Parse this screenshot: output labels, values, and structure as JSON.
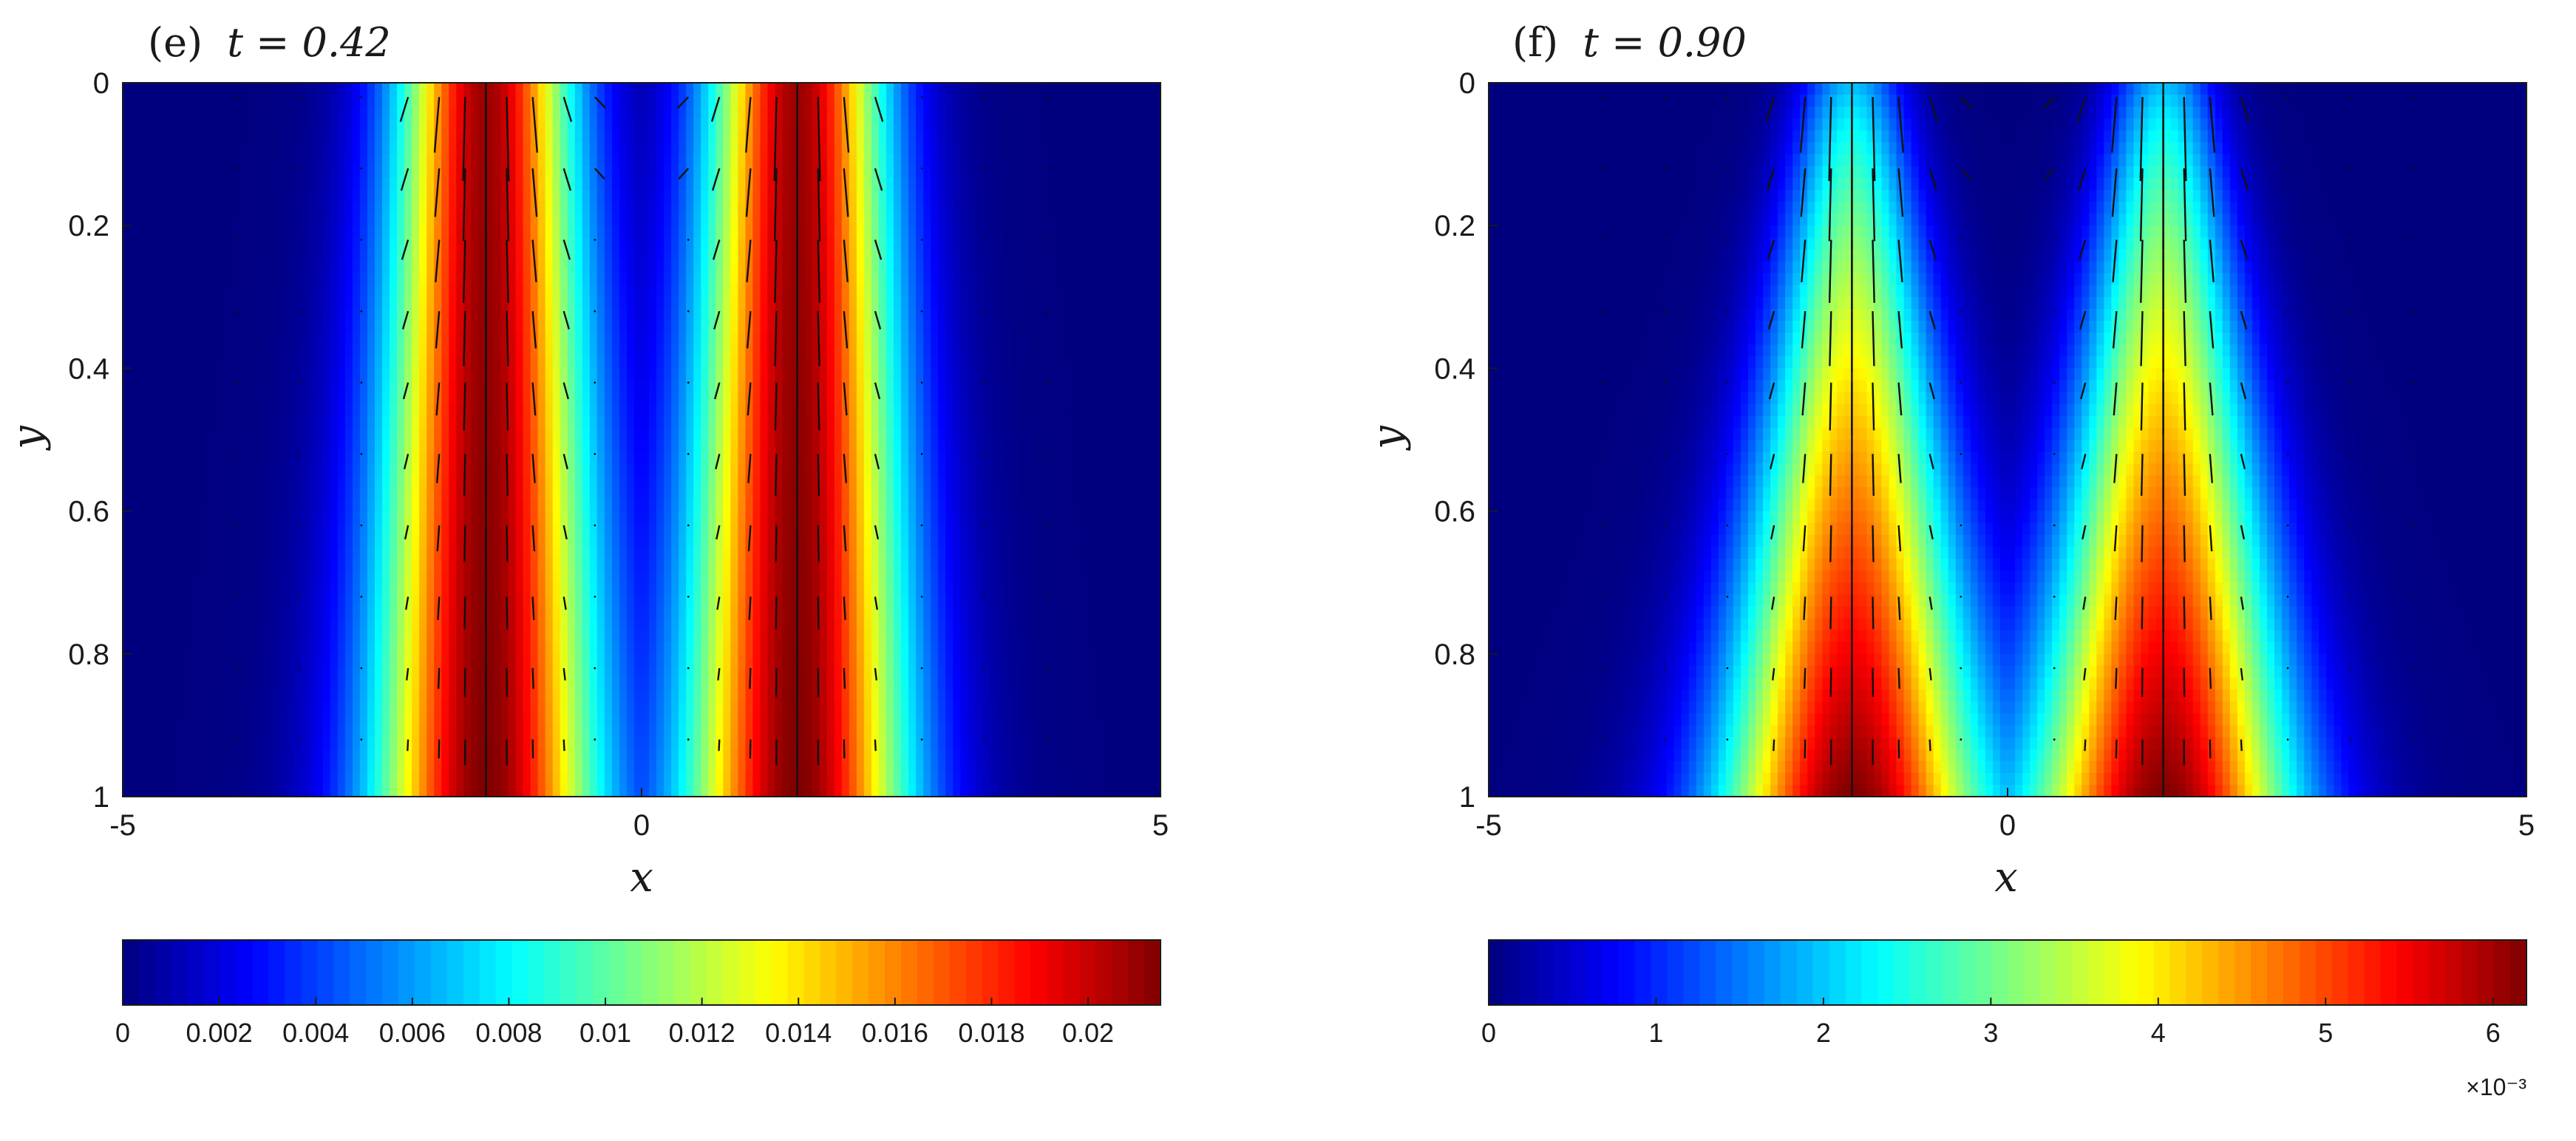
{
  "colors": {
    "jet": [
      "#00007f",
      "#0000ff",
      "#007fff",
      "#00ffff",
      "#7fff7f",
      "#ffff00",
      "#ff7f00",
      "#ff0000",
      "#7f0000"
    ],
    "axis": "#1a1a1a",
    "background": "#ffffff"
  },
  "chart_data": [
    {
      "type": "heatmap",
      "panel_label": "(e)",
      "time_label": "t = 0.42",
      "title": "(e) t = 0.42",
      "xlabel": "x",
      "ylabel": "y",
      "xlim": [
        -5,
        5
      ],
      "ylim": [
        0,
        1
      ],
      "y_reversed": true,
      "x_ticks": [
        -5,
        0,
        5
      ],
      "x_tick_labels": [
        "-5",
        "0",
        "5"
      ],
      "y_ticks": [
        0,
        0.2,
        0.4,
        0.6,
        0.8,
        1
      ],
      "y_tick_labels": [
        "0",
        "0.2",
        "0.4",
        "0.6",
        "0.8",
        "1"
      ],
      "field": {
        "peak_centers_x": [
          -1.5,
          1.5
        ],
        "peak_value": 0.0215,
        "colorbar_range": [
          0,
          0.0215
        ]
      },
      "colorbar": {
        "ticks": [
          0,
          0.002,
          0.004,
          0.006,
          0.008,
          0.01,
          0.012,
          0.014,
          0.016,
          0.018,
          0.02
        ],
        "tick_labels": [
          "0",
          "0.002",
          "0.004",
          "0.006",
          "0.008",
          "0.01",
          "0.012",
          "0.014",
          "0.016",
          "0.018",
          "0.02"
        ],
        "exponent_label": ""
      },
      "quiver": "vertical arrows concentrated near x = -1.5 and x = 1.5, strongest near y = 0"
    },
    {
      "type": "heatmap",
      "panel_label": "(f)",
      "time_label": "t = 0.90",
      "title": "(f) t = 0.90",
      "xlabel": "x",
      "ylabel": "y",
      "xlim": [
        -5,
        5
      ],
      "ylim": [
        0,
        1
      ],
      "y_reversed": true,
      "x_ticks": [
        -5,
        0,
        5
      ],
      "x_tick_labels": [
        "-5",
        "0",
        "5"
      ],
      "y_ticks": [
        0,
        0.2,
        0.4,
        0.6,
        0.8,
        1
      ],
      "y_tick_labels": [
        "0",
        "0.2",
        "0.4",
        "0.6",
        "0.8",
        "1"
      ],
      "field": {
        "peak_centers_x": [
          -1.5,
          1.5
        ],
        "peak_value": 0.0062,
        "colorbar_range": [
          0,
          0.0062
        ]
      },
      "colorbar": {
        "ticks": [
          0,
          1,
          2,
          3,
          4,
          5,
          6
        ],
        "tick_labels": [
          "0",
          "1",
          "2",
          "3",
          "4",
          "5",
          "6"
        ],
        "exponent_label": "×10⁻³"
      },
      "quiver": "vertical arrows concentrated near x = -1.5 and x = 1.5, strongest near y = 0"
    }
  ]
}
